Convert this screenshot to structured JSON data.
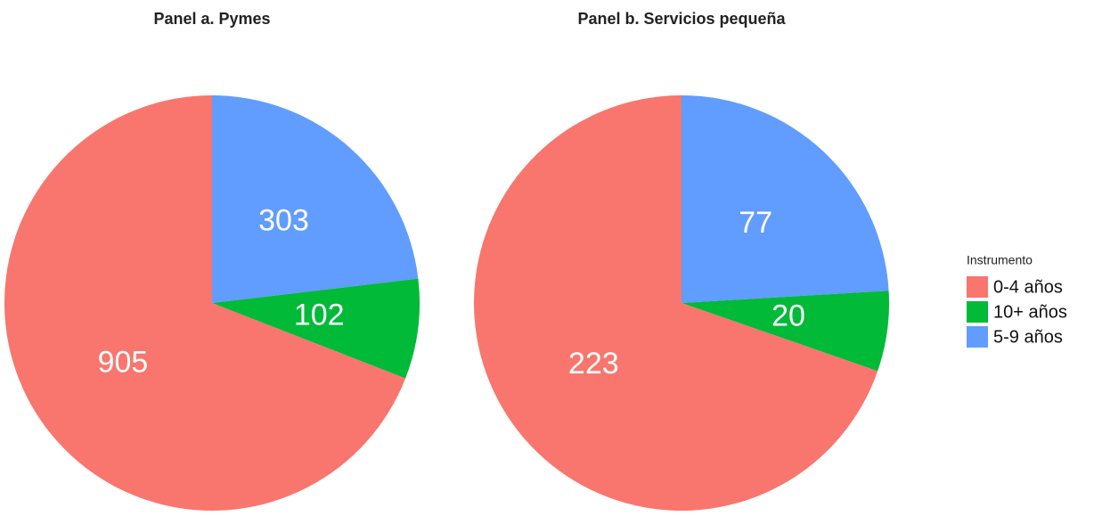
{
  "chart_data": [
    {
      "type": "pie",
      "title": "Panel a. Pymes",
      "categories": [
        "0-4 años",
        "10+ años",
        "5-9 años"
      ],
      "values": [
        905,
        102,
        303
      ],
      "colors": [
        "#f8766d",
        "#00ba38",
        "#619cff"
      ],
      "legend_title": "Instrumento",
      "legend": "right"
    },
    {
      "type": "pie",
      "title": "Panel b. Servicios pequeña",
      "values": [
        223,
        20,
        77
      ],
      "colors": [
        "#f8766d",
        "#00ba38",
        "#619cff"
      ]
    }
  ]
}
